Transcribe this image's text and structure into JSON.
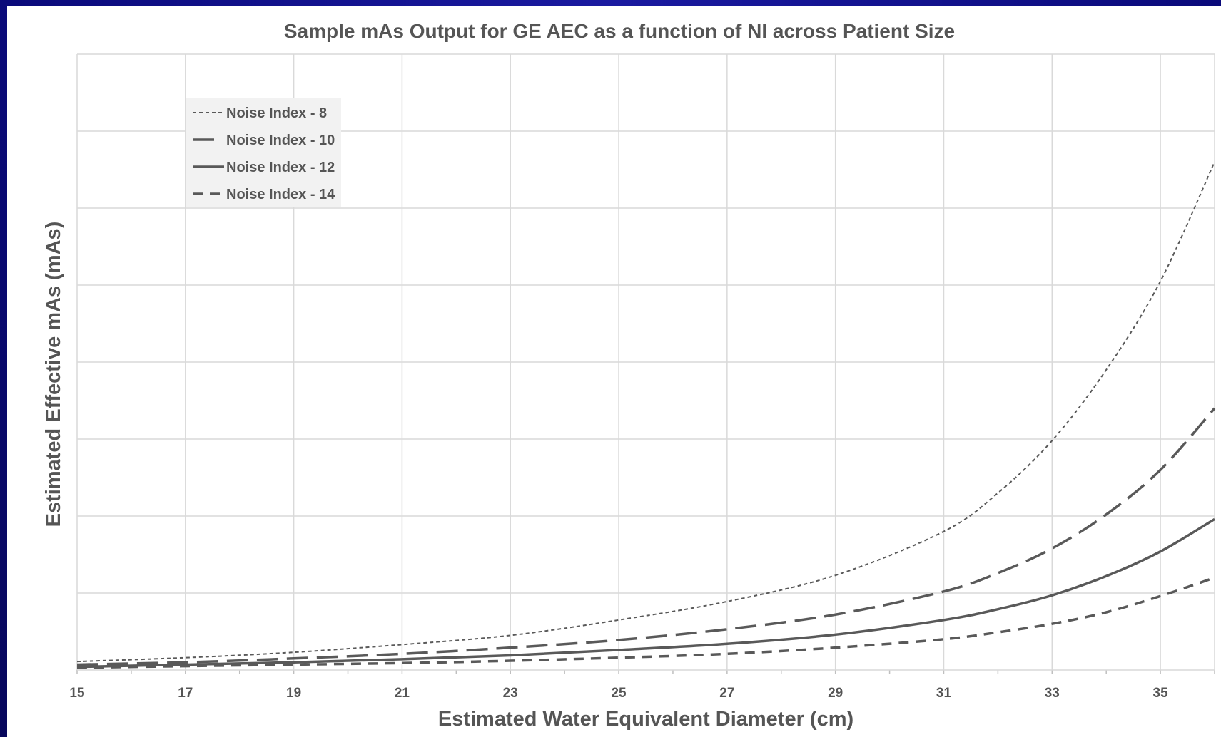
{
  "chart_data": {
    "type": "line",
    "title": "Sample mAs Output for GE AEC as a function of NI across Patient Size",
    "xlabel": "Estimated Water Equivalent Diameter (cm)",
    "ylabel": "Estimated Effective mAs (mAs)",
    "xlim": [
      15,
      36
    ],
    "xticks": [
      "15",
      "17",
      "19",
      "21",
      "23",
      "25",
      "27",
      "29",
      "31",
      "33",
      "35"
    ],
    "ylim": [
      0,
      8
    ],
    "y_gridlines": 8,
    "y_tick_labels_shown": false,
    "grid": true,
    "legend_position": "top-left",
    "line_color": "#595959",
    "series": [
      {
        "name": "Noise Index - 8",
        "style": "dotted",
        "x": [
          15,
          17,
          19,
          21,
          23,
          25,
          27,
          29,
          31,
          32,
          33,
          34,
          35,
          36
        ],
        "values": [
          0.11,
          0.16,
          0.23,
          0.33,
          0.45,
          0.65,
          0.89,
          1.23,
          1.8,
          2.3,
          2.98,
          3.9,
          5.05,
          6.6
        ]
      },
      {
        "name": "Noise Index - 10",
        "style": "long-dash",
        "x": [
          15,
          17,
          19,
          21,
          23,
          25,
          27,
          29,
          31,
          32,
          33,
          34,
          35,
          36
        ],
        "values": [
          0.07,
          0.1,
          0.15,
          0.21,
          0.29,
          0.39,
          0.53,
          0.72,
          1.02,
          1.26,
          1.58,
          2.02,
          2.6,
          3.4
        ]
      },
      {
        "name": "Noise Index - 12",
        "style": "solid",
        "x": [
          15,
          17,
          19,
          21,
          23,
          25,
          27,
          29,
          31,
          32,
          33,
          34,
          35,
          36
        ],
        "values": [
          0.04,
          0.07,
          0.1,
          0.14,
          0.19,
          0.26,
          0.34,
          0.46,
          0.65,
          0.79,
          0.97,
          1.22,
          1.54,
          1.96
        ]
      },
      {
        "name": "Noise Index - 14",
        "style": "short-dash",
        "x": [
          15,
          17,
          19,
          21,
          23,
          25,
          27,
          29,
          31,
          32,
          33,
          34,
          35,
          36
        ],
        "values": [
          0.03,
          0.05,
          0.07,
          0.09,
          0.12,
          0.16,
          0.21,
          0.29,
          0.4,
          0.49,
          0.6,
          0.75,
          0.96,
          1.2
        ]
      }
    ]
  }
}
